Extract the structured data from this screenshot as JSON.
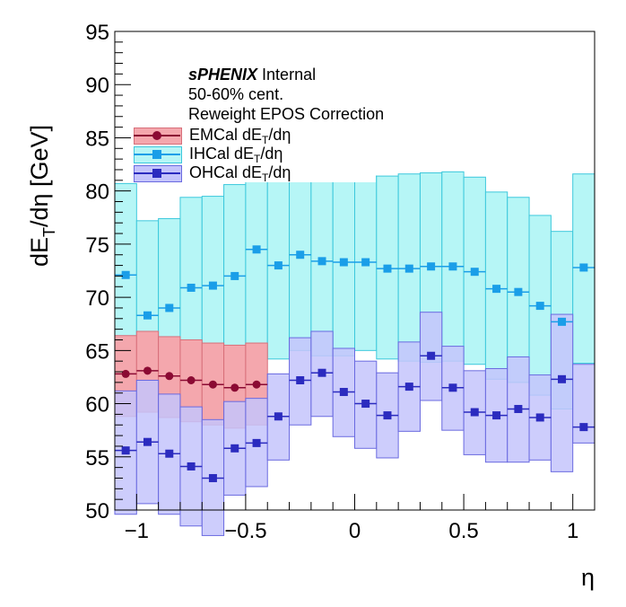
{
  "chart_data": {
    "type": "scatter",
    "ylabel": "dE_T/dη [GeV]",
    "xlabel": "η",
    "xlim": [
      -1.1,
      1.1
    ],
    "ylim": [
      50,
      95
    ],
    "x_ticks": [
      "−1",
      "−0.5",
      "0",
      "0.5",
      "1"
    ],
    "y_ticks": [
      "50",
      "55",
      "60",
      "65",
      "70",
      "75",
      "80",
      "85",
      "90",
      "95"
    ],
    "annotations": {
      "experiment": "sPHENIX",
      "status": "Internal",
      "centrality": "50-60% cent.",
      "note": "Reweight EPOS Correction"
    },
    "legend_position": "top-left",
    "series": [
      {
        "name": "EMCal dE_T/dη",
        "color": "#8b0a33",
        "band_color": "#f4a7ad",
        "marker": "circle",
        "x": [
          -1.05,
          -0.95,
          -0.85,
          -0.75,
          -0.65,
          -0.55,
          -0.45
        ],
        "values": [
          62.8,
          63.1,
          62.6,
          62.2,
          61.8,
          61.5,
          61.8
        ],
        "band_low": [
          58.8,
          59.2,
          58.7,
          58.3,
          58.0,
          57.7,
          58.0
        ],
        "band_high": [
          66.4,
          66.8,
          66.3,
          66.0,
          65.7,
          65.5,
          65.7
        ]
      },
      {
        "name": "IHCal dE_T/dη",
        "color": "#1a9ee8",
        "band_color": "#b6f6f6",
        "marker": "square",
        "x": [
          -1.05,
          -0.95,
          -0.85,
          -0.75,
          -0.65,
          -0.55,
          -0.45,
          -0.35,
          -0.25,
          -0.15,
          -0.05,
          0.05,
          0.15,
          0.25,
          0.35,
          0.45,
          0.55,
          0.65,
          0.75,
          0.85,
          0.95,
          1.05
        ],
        "values": [
          72.1,
          68.3,
          69.0,
          70.9,
          71.1,
          72.0,
          74.5,
          73.0,
          74.0,
          73.4,
          73.3,
          73.3,
          72.7,
          72.7,
          72.9,
          72.9,
          72.4,
          70.8,
          70.5,
          69.2,
          67.7,
          72.8
        ],
        "band_low": [
          63.5,
          60.0,
          60.8,
          62.3,
          62.7,
          63.8,
          65.5,
          64.2,
          65.0,
          64.5,
          64.5,
          65.0,
          64.2,
          64.0,
          63.9,
          64.0,
          63.7,
          62.3,
          62.0,
          60.8,
          59.5,
          63.8
        ],
        "band_high": [
          80.7,
          77.2,
          77.4,
          79.4,
          79.5,
          80.6,
          81.5,
          81.6,
          82.0,
          81.5,
          81.5,
          81.4,
          81.4,
          81.6,
          81.7,
          81.8,
          81.3,
          79.9,
          79.4,
          77.7,
          76.2,
          81.6
        ]
      },
      {
        "name": "OHCal dE_T/dη",
        "color": "#2b2bbf",
        "band_color": "#c4c4fb",
        "marker": "square",
        "x": [
          -1.05,
          -0.95,
          -0.85,
          -0.75,
          -0.65,
          -0.55,
          -0.45,
          -0.35,
          -0.25,
          -0.15,
          -0.05,
          0.05,
          0.15,
          0.25,
          0.35,
          0.45,
          0.55,
          0.65,
          0.75,
          0.85,
          0.95,
          1.05
        ],
        "values": [
          55.6,
          56.4,
          55.3,
          54.1,
          53.0,
          55.8,
          56.3,
          58.8,
          62.2,
          62.9,
          61.1,
          60.0,
          58.9,
          61.6,
          64.5,
          61.5,
          59.2,
          58.9,
          59.5,
          58.7,
          62.3,
          57.8
        ],
        "band_low": [
          49.6,
          50.6,
          49.6,
          48.5,
          47.6,
          51.4,
          52.2,
          54.7,
          58.0,
          58.8,
          56.9,
          55.8,
          54.9,
          57.4,
          60.3,
          57.5,
          55.2,
          54.5,
          54.5,
          54.7,
          53.6,
          56.3
        ],
        "band_high": [
          61.2,
          62.2,
          60.9,
          59.7,
          58.5,
          60.2,
          60.5,
          62.8,
          66.2,
          66.8,
          65.2,
          64.0,
          62.9,
          65.8,
          68.6,
          65.4,
          63.1,
          63.3,
          64.4,
          62.7,
          68.4,
          63.7
        ]
      }
    ]
  }
}
